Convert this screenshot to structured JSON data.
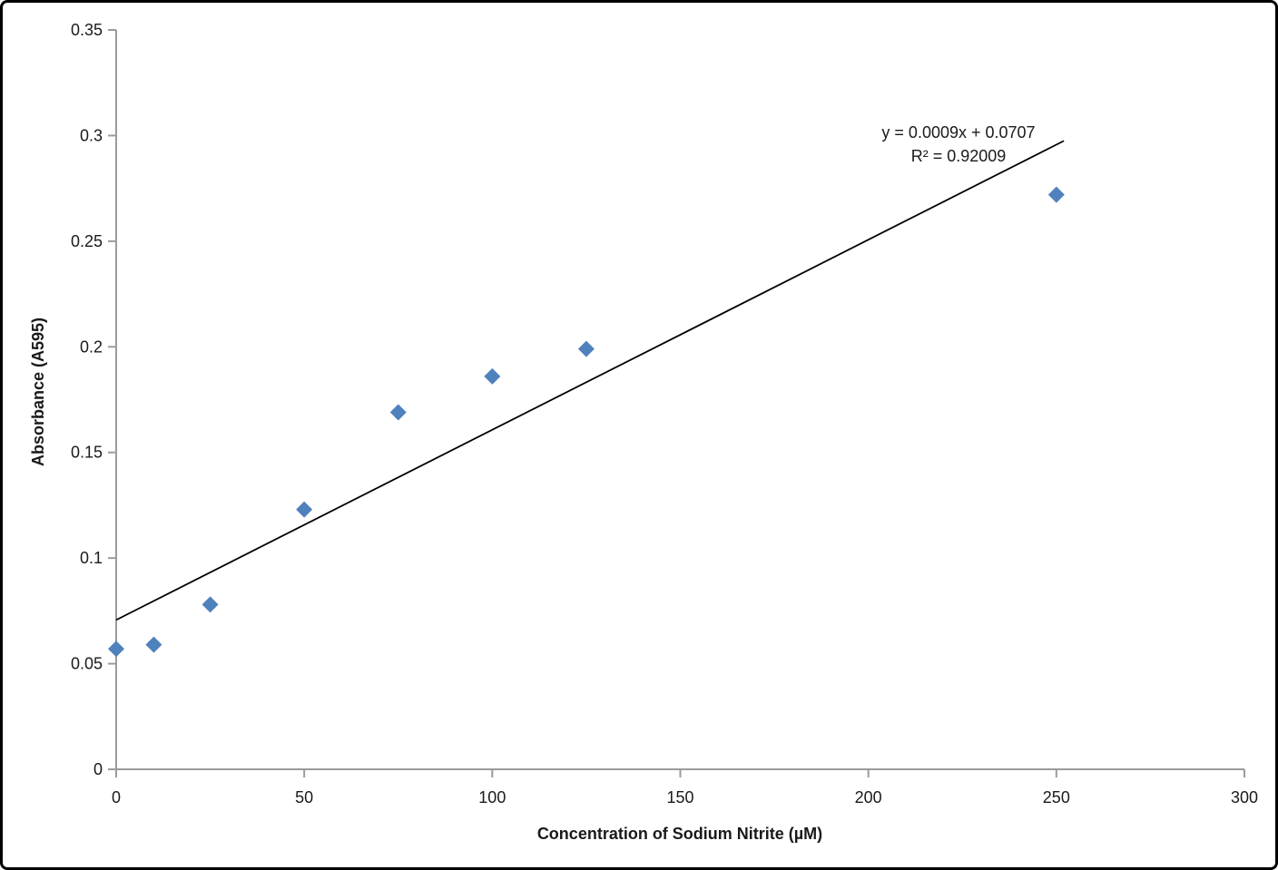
{
  "frame": {
    "border_color": "#000000",
    "background_color": "#ffffff"
  },
  "chart_data": {
    "type": "scatter",
    "title": "",
    "xlabel": "Concentration of Sodium Nitrite (µM)",
    "ylabel": "Absorbance (A595)",
    "xlim": [
      0,
      300
    ],
    "ylim": [
      0,
      0.35
    ],
    "x_ticks": [
      0,
      50,
      100,
      150,
      200,
      250,
      300
    ],
    "x_tick_labels": [
      "0",
      "50",
      "100",
      "150",
      "200",
      "250",
      "300"
    ],
    "y_ticks": [
      0,
      0.05,
      0.1,
      0.15,
      0.2,
      0.25,
      0.3,
      0.35
    ],
    "y_tick_labels": [
      "0",
      "0.05",
      "0.1",
      "0.15",
      "0.2",
      "0.25",
      "0.3",
      "0.35"
    ],
    "grid": false,
    "legend": "none",
    "axis_color": "#9b9b9b",
    "text_color": "#1a1a1a",
    "series": [
      {
        "name": "Absorbance vs Concentration",
        "marker": "diamond",
        "color": "#4F81BD",
        "points": [
          [
            0,
            0.057
          ],
          [
            10,
            0.059
          ],
          [
            25,
            0.078
          ],
          [
            50,
            0.123
          ],
          [
            75,
            0.169
          ],
          [
            100,
            0.186
          ],
          [
            125,
            0.199
          ],
          [
            250,
            0.272
          ]
        ]
      }
    ],
    "trendline": {
      "slope": 0.0009,
      "intercept": 0.0707,
      "r_squared": 0.92009,
      "x_range": [
        0,
        252
      ],
      "color": "#000000",
      "label_line1": "y = 0.0009x + 0.0707",
      "label_line2": "R² = 0.92009"
    }
  }
}
